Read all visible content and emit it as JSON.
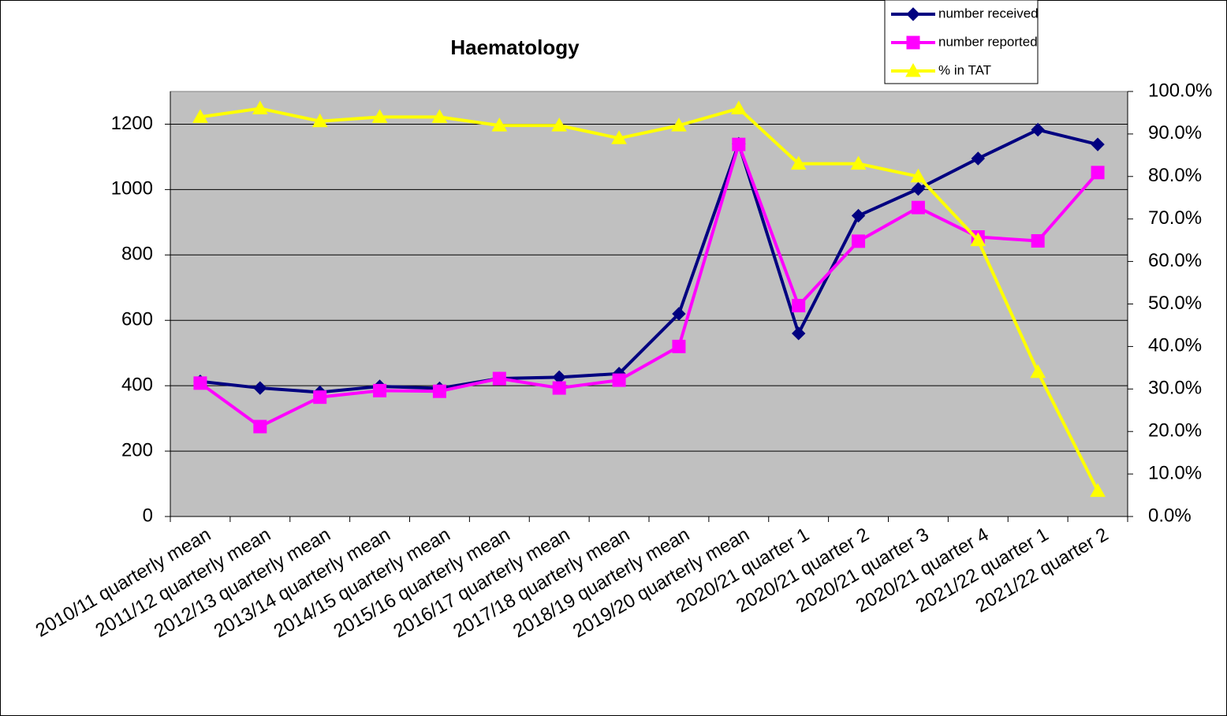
{
  "chart_data": {
    "type": "line",
    "title": "Haematology",
    "categories": [
      "2010/11 quarterly mean",
      "2011/12 quarterly mean",
      "2012/13 quarterly mean",
      "2013/14 quarterly mean",
      "2014/15 quarterly mean",
      "2015/16 quarterly mean",
      "2016/17 quarterly mean",
      "2017/18 quarterly mean",
      "2018/19 quarterly mean",
      "2019/20 quarterly mean",
      "2020/21 quarter 1",
      "2020/21 quarter 2",
      "2020/21 quarter 3",
      "2020/21 quarter 4",
      "2021/22 quarter 1",
      "2021/22 quarter 2"
    ],
    "series": [
      {
        "name": "number received",
        "color": "#000080",
        "marker": "diamond",
        "values": [
          413,
          393,
          380,
          398,
          392,
          422,
          426,
          437,
          620,
          1140,
          560,
          920,
          1002,
          1095,
          1183,
          1138
        ]
      },
      {
        "name": "number reported",
        "color": "#ff00ff",
        "marker": "square",
        "values": [
          408,
          275,
          365,
          385,
          383,
          422,
          393,
          417,
          520,
          1138,
          645,
          842,
          945,
          855,
          843,
          1052
        ]
      },
      {
        "name": "% in TAT",
        "color": "#ffff00",
        "marker": "triangle",
        "axis": "y2",
        "values": [
          94,
          96,
          93,
          94,
          94,
          92,
          92,
          89,
          92,
          96,
          83,
          83,
          80,
          65,
          34,
          6
        ]
      }
    ],
    "ylim": [
      0,
      1300
    ],
    "yticks": [
      0,
      200,
      400,
      600,
      800,
      1000,
      1200
    ],
    "y2lim": [
      0,
      100
    ],
    "y2ticks": [
      {
        "value": 0,
        "label": "0.0%"
      },
      {
        "value": 10,
        "label": "10.0%"
      },
      {
        "value": 20,
        "label": "20.0%"
      },
      {
        "value": 30,
        "label": "30.0%"
      },
      {
        "value": 40,
        "label": "40.0%"
      },
      {
        "value": 50,
        "label": "50.0%"
      },
      {
        "value": 60,
        "label": "60.0%"
      },
      {
        "value": 70,
        "label": "70.0%"
      },
      {
        "value": 80,
        "label": "80.0%"
      },
      {
        "value": 90,
        "label": "90.0%"
      },
      {
        "value": 100,
        "label": "100.0%"
      }
    ],
    "grid": true,
    "plot_background": "#c0c0c0",
    "legend": "top-right"
  }
}
